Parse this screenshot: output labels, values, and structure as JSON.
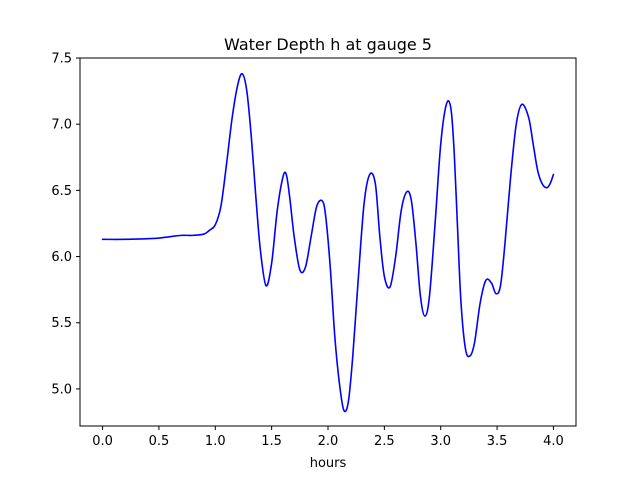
{
  "chart_data": {
    "type": "line",
    "title": "Water Depth h at gauge 5",
    "xlabel": "hours",
    "ylabel": "",
    "xlim": [
      -0.2,
      4.2
    ],
    "ylim": [
      4.72,
      7.5
    ],
    "xticks": [
      0.0,
      0.5,
      1.0,
      1.5,
      2.0,
      2.5,
      3.0,
      3.5,
      4.0
    ],
    "xtick_labels": [
      "0.0",
      "0.5",
      "1.0",
      "1.5",
      "2.0",
      "2.5",
      "3.0",
      "3.5",
      "4.0"
    ],
    "yticks": [
      5.0,
      5.5,
      6.0,
      6.5,
      7.0,
      7.5
    ],
    "ytick_labels": [
      "5.0",
      "5.5",
      "6.0",
      "6.5",
      "7.0",
      "7.5"
    ],
    "grid": false,
    "series": [
      {
        "color": "#0000ff",
        "x": [
          0.0,
          0.2,
          0.4,
          0.5,
          0.6,
          0.7,
          0.8,
          0.9,
          0.95,
          1.0,
          1.05,
          1.1,
          1.15,
          1.2,
          1.24,
          1.28,
          1.32,
          1.36,
          1.4,
          1.45,
          1.5,
          1.55,
          1.6,
          1.63,
          1.66,
          1.7,
          1.75,
          1.8,
          1.85,
          1.9,
          1.95,
          1.98,
          2.02,
          2.06,
          2.1,
          2.14,
          2.18,
          2.22,
          2.27,
          2.32,
          2.37,
          2.42,
          2.46,
          2.5,
          2.55,
          2.6,
          2.65,
          2.7,
          2.74,
          2.78,
          2.82,
          2.86,
          2.9,
          2.95,
          3.0,
          3.05,
          3.09,
          3.12,
          3.15,
          3.18,
          3.22,
          3.26,
          3.3,
          3.35,
          3.4,
          3.45,
          3.49,
          3.53,
          3.57,
          3.62,
          3.67,
          3.72,
          3.78,
          3.82,
          3.86,
          3.9,
          3.94,
          3.97,
          4.0
        ],
        "y": [
          6.13,
          6.13,
          6.135,
          6.14,
          6.15,
          6.16,
          6.16,
          6.17,
          6.2,
          6.24,
          6.38,
          6.7,
          7.05,
          7.3,
          7.38,
          7.25,
          6.9,
          6.45,
          6.05,
          5.78,
          5.95,
          6.35,
          6.6,
          6.62,
          6.45,
          6.15,
          5.9,
          5.92,
          6.15,
          6.38,
          6.42,
          6.3,
          5.92,
          5.4,
          5.05,
          4.84,
          4.9,
          5.25,
          5.85,
          6.4,
          6.62,
          6.55,
          6.15,
          5.85,
          5.77,
          6.0,
          6.35,
          6.49,
          6.42,
          6.1,
          5.7,
          5.55,
          5.7,
          6.25,
          6.85,
          7.15,
          7.12,
          6.78,
          6.2,
          5.65,
          5.3,
          5.25,
          5.35,
          5.65,
          5.82,
          5.8,
          5.72,
          5.78,
          6.1,
          6.6,
          7.0,
          7.15,
          7.05,
          6.85,
          6.65,
          6.55,
          6.52,
          6.55,
          6.62
        ]
      }
    ]
  }
}
